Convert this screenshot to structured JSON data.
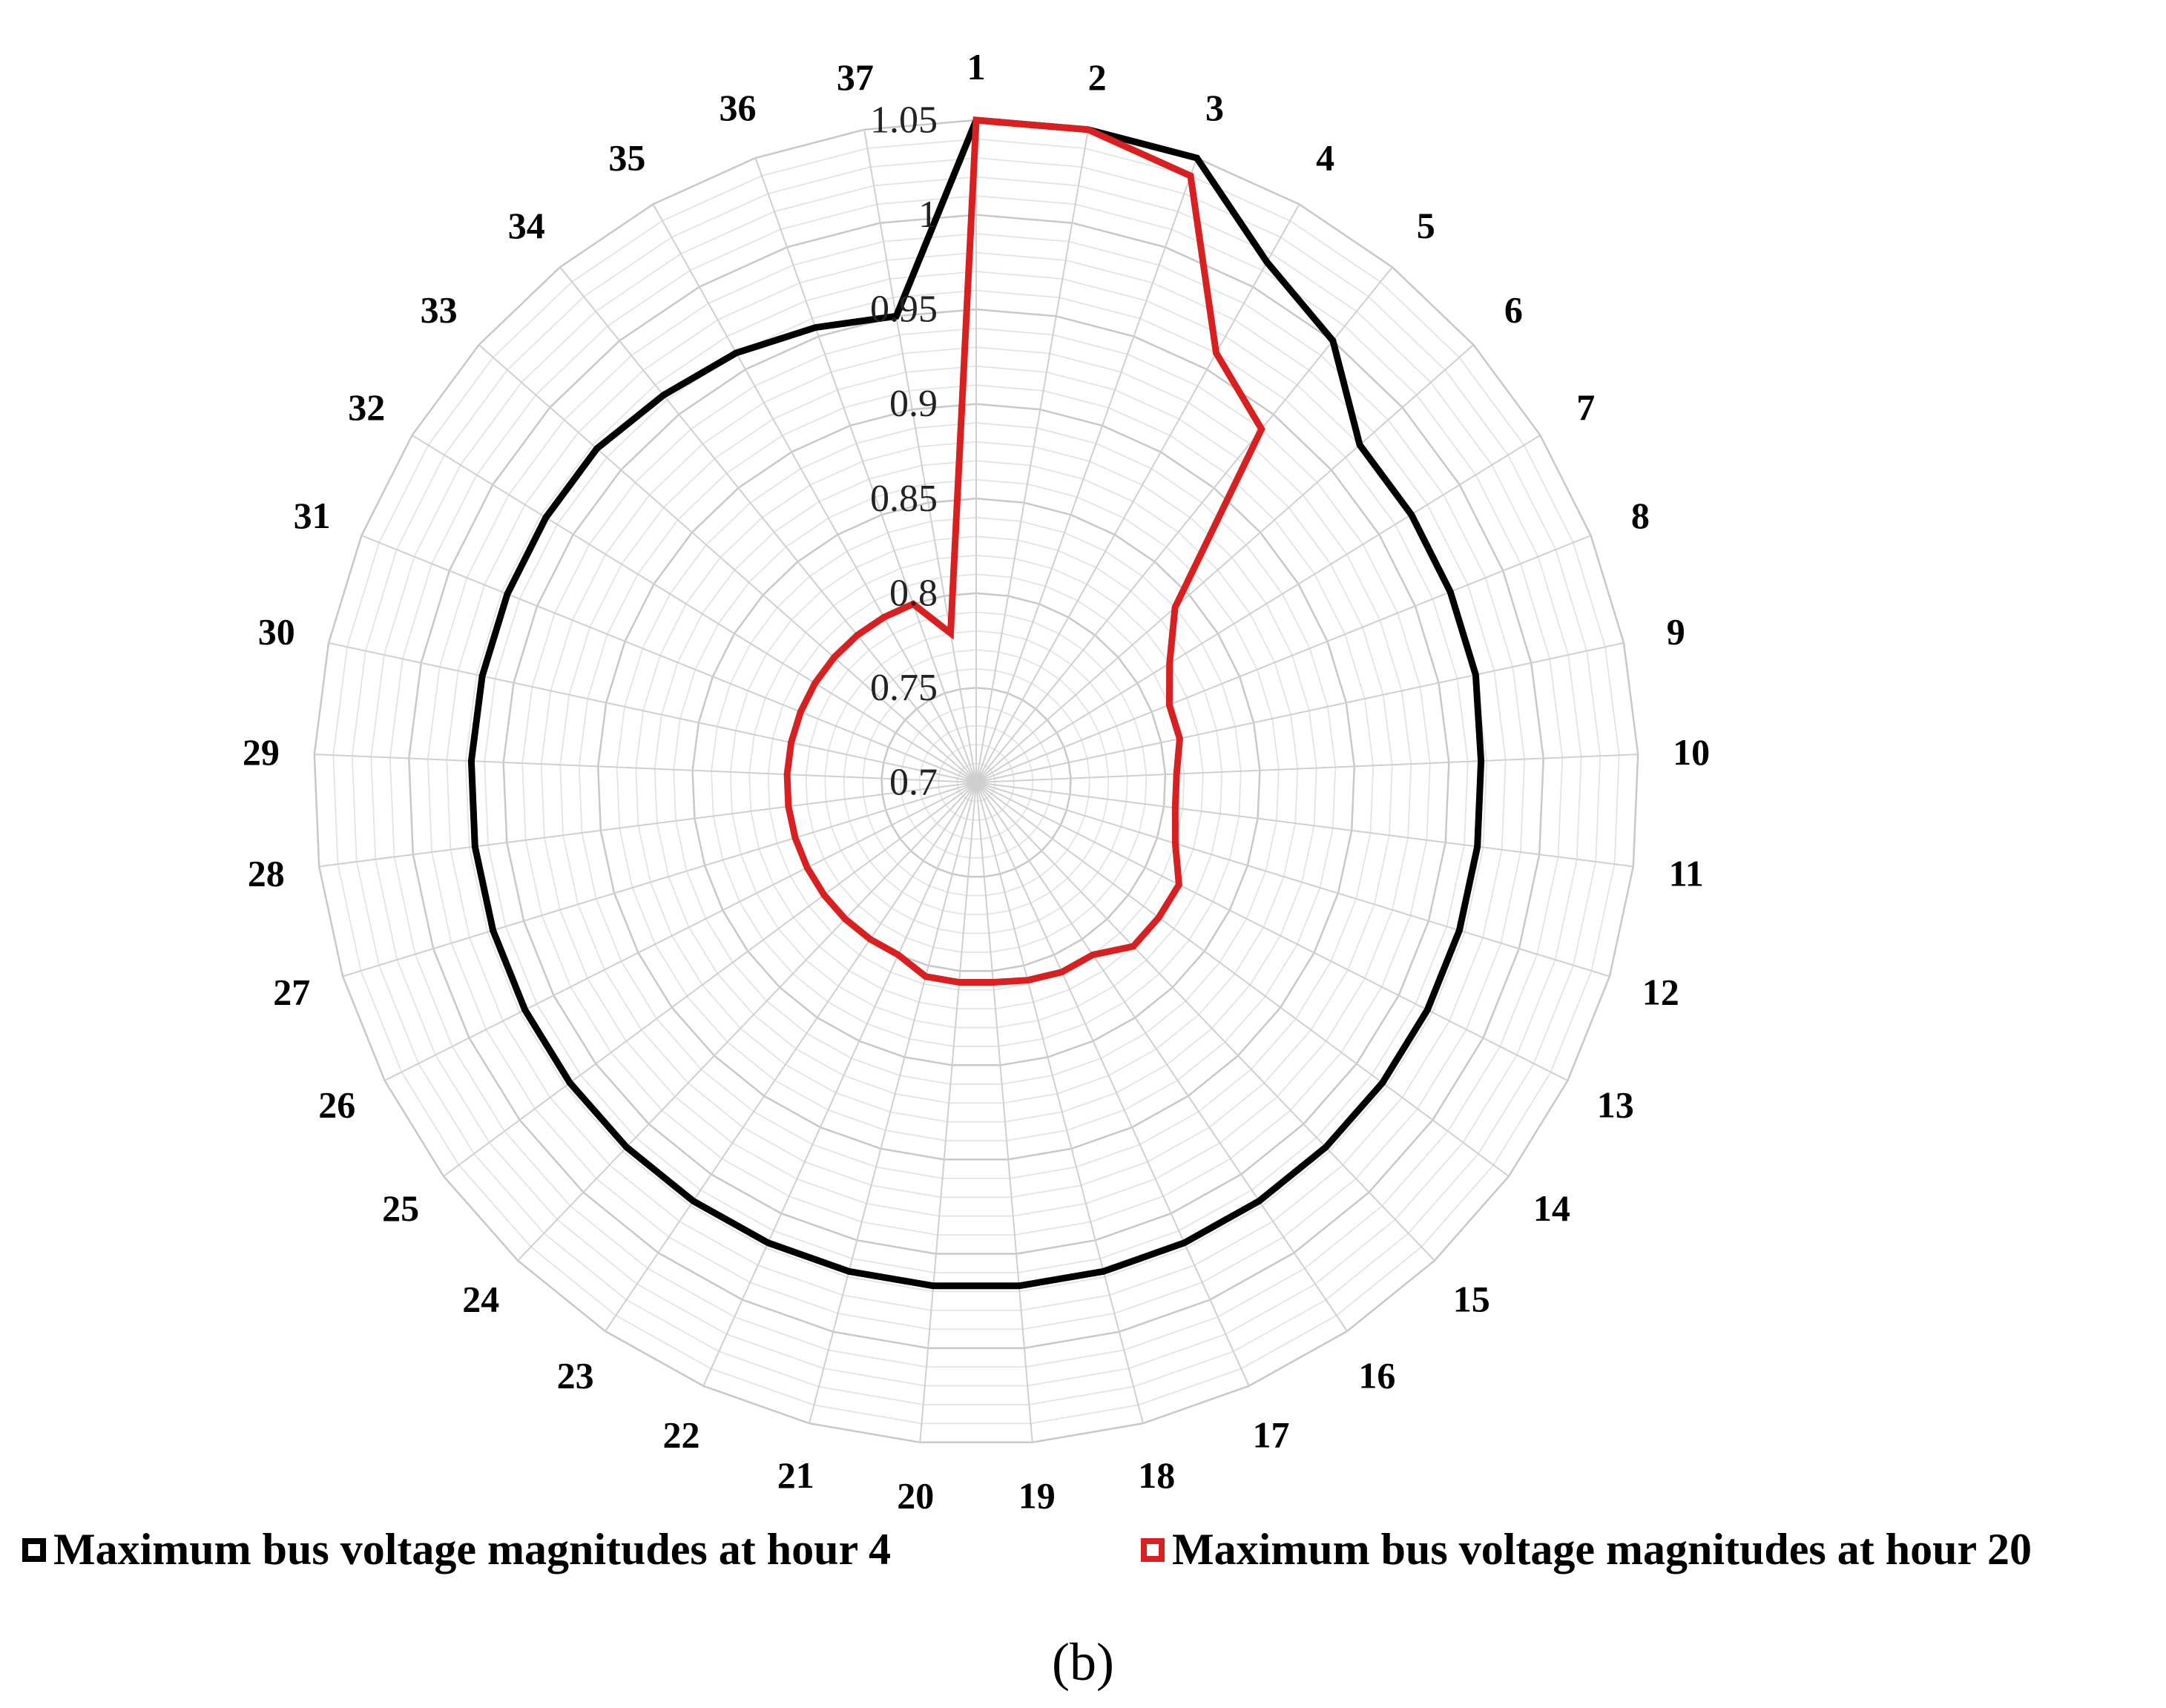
{
  "chart_data": {
    "type": "radar",
    "categories": [
      "1",
      "2",
      "3",
      "4",
      "5",
      "6",
      "7",
      "8",
      "9",
      "10",
      "11",
      "12",
      "13",
      "14",
      "15",
      "16",
      "17",
      "18",
      "19",
      "20",
      "21",
      "22",
      "23",
      "24",
      "25",
      "26",
      "27",
      "28",
      "29",
      "30",
      "31",
      "32",
      "33",
      "34",
      "35",
      "36",
      "37"
    ],
    "rlim": [
      0.7,
      1.05
    ],
    "rticks": [
      "0.7",
      "0.75",
      "0.8",
      "0.85",
      "0.9",
      "0.95",
      "1",
      "1.05"
    ],
    "grid": true,
    "series": [
      {
        "name": "Maximum bus voltage magnitudes at hour 4",
        "color": "#000000",
        "values": [
          1.05,
          1.05,
          1.05,
          1.015,
          1.0,
          0.97,
          0.97,
          0.97,
          0.97,
          0.967,
          0.967,
          0.967,
          0.967,
          0.967,
          0.967,
          0.967,
          0.967,
          0.967,
          0.967,
          0.967,
          0.967,
          0.967,
          0.967,
          0.967,
          0.967,
          0.967,
          0.967,
          0.967,
          0.967,
          0.967,
          0.967,
          0.967,
          0.967,
          0.963,
          0.96,
          0.955,
          0.95
        ]
      },
      {
        "name": "Maximum bus voltage magnitudes at hour 20",
        "color": "#d92020",
        "values": [
          1.05,
          1.05,
          1.04,
          0.96,
          0.94,
          0.84,
          0.82,
          0.81,
          0.81,
          0.806,
          0.806,
          0.81,
          0.82,
          0.82,
          0.82,
          0.81,
          0.81,
          0.808,
          0.806,
          0.806,
          0.806,
          0.8,
          0.8,
          0.8,
          0.8,
          0.8,
          0.8,
          0.8,
          0.8,
          0.8,
          0.8,
          0.8,
          0.8,
          0.8,
          0.8,
          0.8,
          0.78
        ]
      }
    ],
    "legend_position": "bottom"
  },
  "caption": "(b)"
}
